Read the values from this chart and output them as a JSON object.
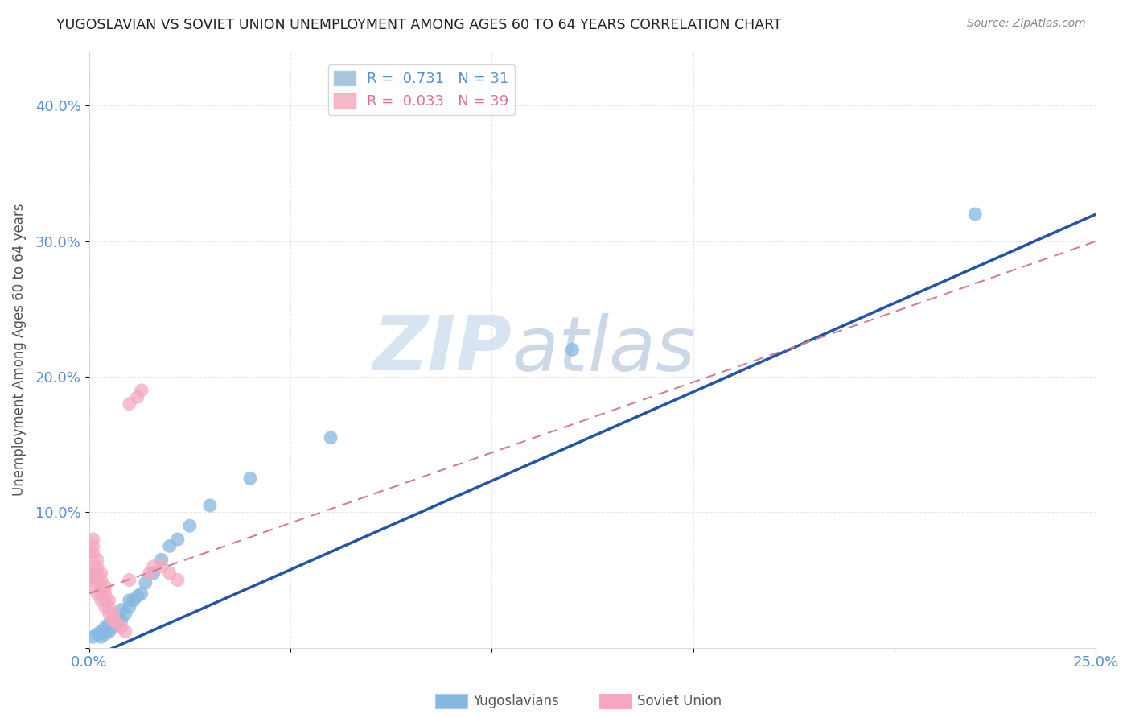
{
  "title": "YUGOSLAVIAN VS SOVIET UNION UNEMPLOYMENT AMONG AGES 60 TO 64 YEARS CORRELATION CHART",
  "source": "Source: ZipAtlas.com",
  "ylabel": "Unemployment Among Ages 60 to 64 years",
  "xlim": [
    0.0,
    0.25
  ],
  "ylim": [
    0.0,
    0.44
  ],
  "xticks": [
    0.0,
    0.05,
    0.1,
    0.15,
    0.2,
    0.25
  ],
  "yticks": [
    0.0,
    0.1,
    0.2,
    0.3,
    0.4
  ],
  "xticklabels": [
    "0.0%",
    "",
    "",
    "",
    "",
    "25.0%"
  ],
  "yticklabels": [
    "",
    "10.0%",
    "20.0%",
    "30.0%",
    "40.0%"
  ],
  "legend_entries": [
    {
      "label": "R =  0.731   N = 31",
      "color": "#aac4e0"
    },
    {
      "label": "R =  0.033   N = 39",
      "color": "#f4b8c8"
    }
  ],
  "legend_text_colors": [
    "#5b8dd4",
    "#e07090"
  ],
  "yugoslavian_color": "#85b8e0",
  "soviet_color": "#f4a8c0",
  "trendline_yugo_color": "#2255aa",
  "trendline_soviet_color": "#d08090",
  "watermark_zip": "ZIP",
  "watermark_atlas": "atlas",
  "background_color": "#ffffff",
  "grid_color": "#e8e8e8",
  "yugo_x": [
    0.001,
    0.002,
    0.003,
    0.003,
    0.004,
    0.004,
    0.005,
    0.005,
    0.006,
    0.006,
    0.007,
    0.007,
    0.008,
    0.008,
    0.009,
    0.01,
    0.01,
    0.011,
    0.012,
    0.013,
    0.014,
    0.016,
    0.018,
    0.02,
    0.022,
    0.025,
    0.03,
    0.04,
    0.06,
    0.12,
    0.22
  ],
  "yugo_y": [
    0.008,
    0.01,
    0.008,
    0.012,
    0.01,
    0.015,
    0.012,
    0.018,
    0.015,
    0.02,
    0.018,
    0.022,
    0.02,
    0.028,
    0.025,
    0.03,
    0.035,
    0.035,
    0.038,
    0.04,
    0.048,
    0.055,
    0.065,
    0.075,
    0.08,
    0.09,
    0.105,
    0.125,
    0.155,
    0.22,
    0.32
  ],
  "soviet_x": [
    0.0,
    0.0,
    0.001,
    0.001,
    0.001,
    0.001,
    0.001,
    0.001,
    0.002,
    0.002,
    0.002,
    0.002,
    0.002,
    0.003,
    0.003,
    0.003,
    0.003,
    0.003,
    0.004,
    0.004,
    0.004,
    0.004,
    0.005,
    0.005,
    0.005,
    0.006,
    0.006,
    0.007,
    0.008,
    0.009,
    0.01,
    0.01,
    0.012,
    0.013,
    0.015,
    0.016,
    0.018,
    0.02,
    0.022
  ],
  "soviet_y": [
    0.05,
    0.07,
    0.045,
    0.055,
    0.06,
    0.07,
    0.075,
    0.08,
    0.04,
    0.05,
    0.055,
    0.06,
    0.065,
    0.035,
    0.04,
    0.045,
    0.05,
    0.055,
    0.03,
    0.035,
    0.04,
    0.045,
    0.025,
    0.03,
    0.035,
    0.02,
    0.025,
    0.018,
    0.015,
    0.012,
    0.05,
    0.18,
    0.185,
    0.19,
    0.055,
    0.06,
    0.06,
    0.055,
    0.05
  ],
  "trendline_yugo_x0": 0.0,
  "trendline_yugo_y0": -0.008,
  "trendline_yugo_x1": 0.25,
  "trendline_yugo_y1": 0.32,
  "trendline_soviet_x0": 0.0,
  "trendline_soviet_y0": 0.04,
  "trendline_soviet_x1": 0.25,
  "trendline_soviet_y1": 0.3
}
